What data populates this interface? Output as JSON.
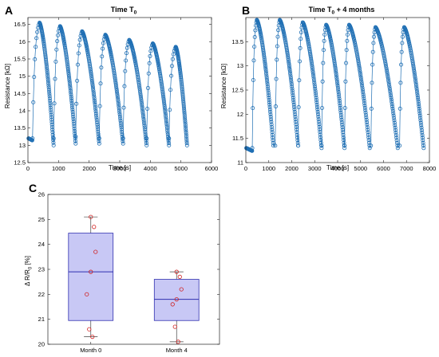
{
  "panels": {
    "A": {
      "letter": "A",
      "title": "Time T",
      "title_sub": "0",
      "title_suffix": ""
    },
    "B": {
      "letter": "B",
      "title": "Time T",
      "title_sub": "0",
      "title_suffix": " + 4 months"
    },
    "C": {
      "letter": "C"
    }
  },
  "chart_data": [
    {
      "id": "A",
      "type": "line",
      "title": "Time T0",
      "xlabel": "Time [s]",
      "ylabel": "Resistance [kΩ]",
      "xlim": [
        0,
        6000
      ],
      "ylim": [
        12.5,
        16.7
      ],
      "xticks": [
        0,
        1000,
        2000,
        3000,
        4000,
        5000,
        6000
      ],
      "yticks": [
        12.5,
        13,
        13.5,
        14,
        14.5,
        15,
        15.5,
        16,
        16.5
      ],
      "ytick_labels": [
        "12.5",
        "13",
        "13.5",
        "14",
        "14.5",
        "15",
        "15.5",
        "16",
        "16.5"
      ],
      "marker": "circle",
      "color": "#1f6fb4",
      "cycles": [
        {
          "baseline_start": 13.2,
          "rise_start": 150,
          "peak_time": 380,
          "peak": 16.55,
          "end_time": 840,
          "end": 13.0
        },
        {
          "baseline_start": 13.2,
          "rise_start": 840,
          "peak_time": 1050,
          "peak": 16.45,
          "end_time": 1560,
          "end": 13.05
        },
        {
          "baseline_start": 13.25,
          "rise_start": 1560,
          "peak_time": 1770,
          "peak": 16.3,
          "end_time": 2330,
          "end": 13.05
        },
        {
          "baseline_start": 13.2,
          "rise_start": 2330,
          "peak_time": 2530,
          "peak": 16.2,
          "end_time": 3110,
          "end": 13.05
        },
        {
          "baseline_start": 13.2,
          "rise_start": 3110,
          "peak_time": 3310,
          "peak": 16.05,
          "end_time": 3880,
          "end": 13.0
        },
        {
          "baseline_start": 13.2,
          "rise_start": 3880,
          "peak_time": 4080,
          "peak": 15.95,
          "end_time": 4610,
          "end": 13.0
        },
        {
          "baseline_start": 13.2,
          "rise_start": 4610,
          "peak_time": 4830,
          "peak": 15.85,
          "end_time": 5200,
          "end": 13.0
        }
      ]
    },
    {
      "id": "B",
      "type": "line",
      "title": "Time T0 + 4 months",
      "xlabel": "Time [s]",
      "ylabel": "Resistance [kΩ]",
      "xlim": [
        0,
        8000
      ],
      "ylim": [
        11,
        14
      ],
      "xticks": [
        0,
        1000,
        2000,
        3000,
        4000,
        5000,
        6000,
        7000,
        8000
      ],
      "yticks": [
        11,
        11.5,
        12,
        12.5,
        13,
        13.5
      ],
      "ytick_labels": [
        "11",
        "11.5",
        "12",
        "12.5",
        "13",
        "13.5"
      ],
      "marker": "circle",
      "color": "#1f6fb4",
      "cycles": [
        {
          "baseline_start": 11.3,
          "rise_start": 280,
          "peak_time": 480,
          "peak": 13.95,
          "end_time": 1200,
          "end": 11.35
        },
        {
          "baseline_start": 11.35,
          "rise_start": 1280,
          "peak_time": 1480,
          "peak": 13.95,
          "end_time": 2280,
          "end": 11.35
        },
        {
          "baseline_start": 11.35,
          "rise_start": 2280,
          "peak_time": 2480,
          "peak": 13.9,
          "end_time": 3300,
          "end": 11.3
        },
        {
          "baseline_start": 11.35,
          "rise_start": 3300,
          "peak_time": 3500,
          "peak": 13.85,
          "end_time": 4300,
          "end": 11.3
        },
        {
          "baseline_start": 11.35,
          "rise_start": 4300,
          "peak_time": 4500,
          "peak": 13.85,
          "end_time": 5400,
          "end": 11.3
        },
        {
          "baseline_start": 11.35,
          "rise_start": 5450,
          "peak_time": 5650,
          "peak": 13.8,
          "end_time": 6620,
          "end": 11.3
        },
        {
          "baseline_start": 11.35,
          "rise_start": 6700,
          "peak_time": 6900,
          "peak": 13.8,
          "end_time": 7750,
          "end": 11.3
        }
      ]
    },
    {
      "id": "C",
      "type": "box",
      "ylabel": "Δ R/R",
      "ylabel_sub": "0",
      "ylabel_suffix": " [%]",
      "ylim": [
        20,
        26
      ],
      "yticks": [
        20,
        21,
        22,
        23,
        24,
        25,
        26
      ],
      "categories": [
        "Month 0",
        "Month 4"
      ],
      "box_fill": "#c8c8f5",
      "box_stroke": "#3030b0",
      "point_color": "#d02020",
      "boxes": [
        {
          "category": "Month 0",
          "min": 20.3,
          "q1": 20.95,
          "median": 22.9,
          "q3": 24.45,
          "max": 25.1,
          "points": [
            25.1,
            24.7,
            23.7,
            22.9,
            22.0,
            20.6,
            20.3
          ]
        },
        {
          "category": "Month 4",
          "min": 20.1,
          "q1": 20.95,
          "median": 21.8,
          "q3": 22.6,
          "max": 22.9,
          "points": [
            22.9,
            22.7,
            22.2,
            21.8,
            21.6,
            20.7,
            20.1
          ]
        }
      ]
    }
  ]
}
